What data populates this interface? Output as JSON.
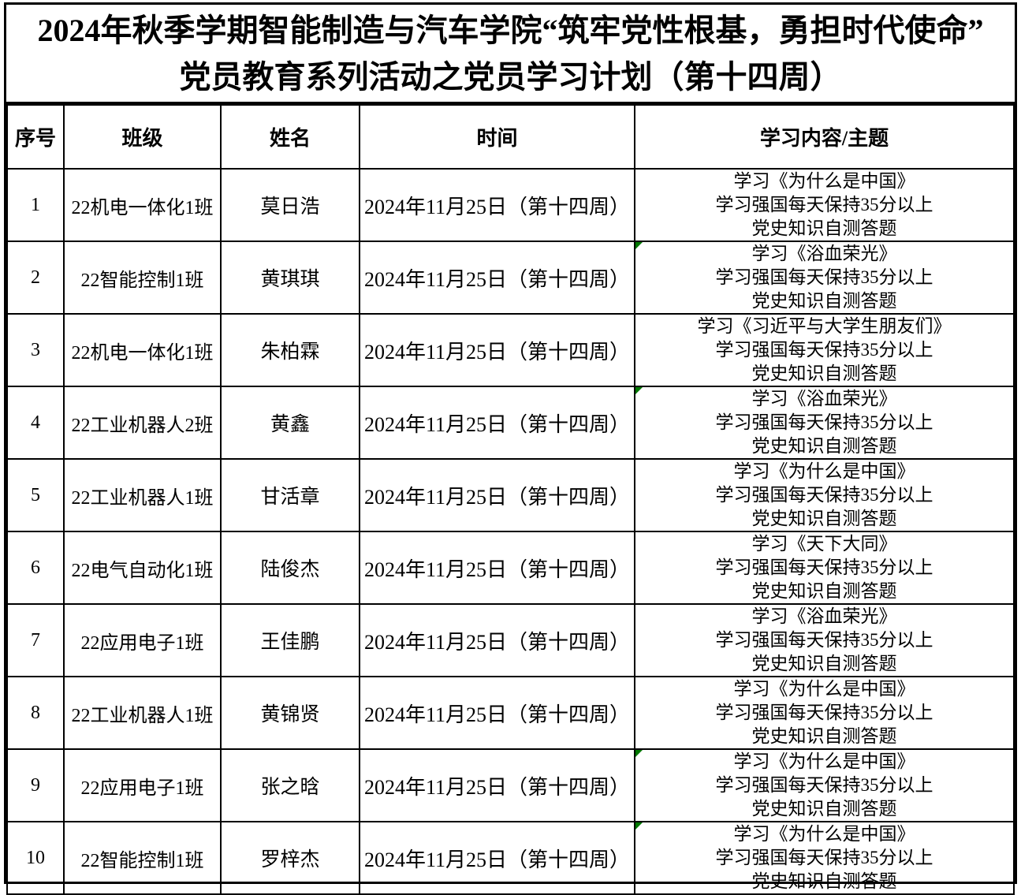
{
  "title": {
    "line1": "2024年秋季学期智能制造与汽车学院“筑牢党性根基，勇担时代使命”",
    "line2": "党员教育系列活动之党员学习计划（第十四周）"
  },
  "table": {
    "columns": [
      "序号",
      "班级",
      "姓名",
      "时间",
      "学习内容/主题"
    ],
    "rows": [
      {
        "no": "1",
        "class_name": "22机电一体化1班",
        "name": "莫日浩",
        "time": "2024年11月25日（第十四周）",
        "content": [
          "学习《为什么是中国》",
          "学习强国每天保持35分以上",
          "党史知识自测答题"
        ],
        "flag": false
      },
      {
        "no": "2",
        "class_name": "22智能控制1班",
        "name": "黄琪琪",
        "time": "2024年11月25日（第十四周）",
        "content": [
          "学习《浴血荣光》",
          "学习强国每天保持35分以上",
          "党史知识自测答题"
        ],
        "flag": true
      },
      {
        "no": "3",
        "class_name": "22机电一体化1班",
        "name": "朱柏霖",
        "time": "2024年11月25日（第十四周）",
        "content": [
          "学习《习近平与大学生朋友们》",
          "学习强国每天保持35分以上",
          "党史知识自测答题"
        ],
        "flag": false
      },
      {
        "no": "4",
        "class_name": "22工业机器人2班",
        "name": "黄鑫",
        "time": "2024年11月25日（第十四周）",
        "content": [
          "学习《浴血荣光》",
          "学习强国每天保持35分以上",
          "党史知识自测答题"
        ],
        "flag": true
      },
      {
        "no": "5",
        "class_name": "22工业机器人1班",
        "name": "甘活章",
        "time": "2024年11月25日（第十四周）",
        "content": [
          "学习《为什么是中国》",
          "学习强国每天保持35分以上",
          "党史知识自测答题"
        ],
        "flag": false
      },
      {
        "no": "6",
        "class_name": "22电气自动化1班",
        "name": "陆俊杰",
        "time": "2024年11月25日（第十四周）",
        "content": [
          "学习《天下大同》",
          "学习强国每天保持35分以上",
          "党史知识自测答题"
        ],
        "flag": false
      },
      {
        "no": "7",
        "class_name": "22应用电子1班",
        "name": "王佳鹏",
        "time": "2024年11月25日（第十四周）",
        "content": [
          "学习《浴血荣光》",
          "学习强国每天保持35分以上",
          "党史知识自测答题"
        ],
        "flag": false
      },
      {
        "no": "8",
        "class_name": "22工业机器人1班",
        "name": "黄锦贤",
        "time": "2024年11月25日（第十四周）",
        "content": [
          "学习《为什么是中国》",
          "学习强国每天保持35分以上",
          "党史知识自测答题"
        ],
        "flag": false
      },
      {
        "no": "9",
        "class_name": "22应用电子1班",
        "name": "张之晗",
        "time": "2024年11月25日（第十四周）",
        "content": [
          "学习《为什么是中国》",
          "学习强国每天保持35分以上",
          "党史知识自测答题"
        ],
        "flag": true
      },
      {
        "no": "10",
        "class_name": "22智能控制1班",
        "name": "罗梓杰",
        "time": "2024年11月25日（第十四周）",
        "content": [
          "学习《为什么是中国》",
          "学习强国每天保持35分以上",
          "党史知识自测答题"
        ],
        "flag": true
      }
    ]
  },
  "colors": {
    "border": "#000000",
    "flag_green": "#007700",
    "background": "#ffffff"
  }
}
